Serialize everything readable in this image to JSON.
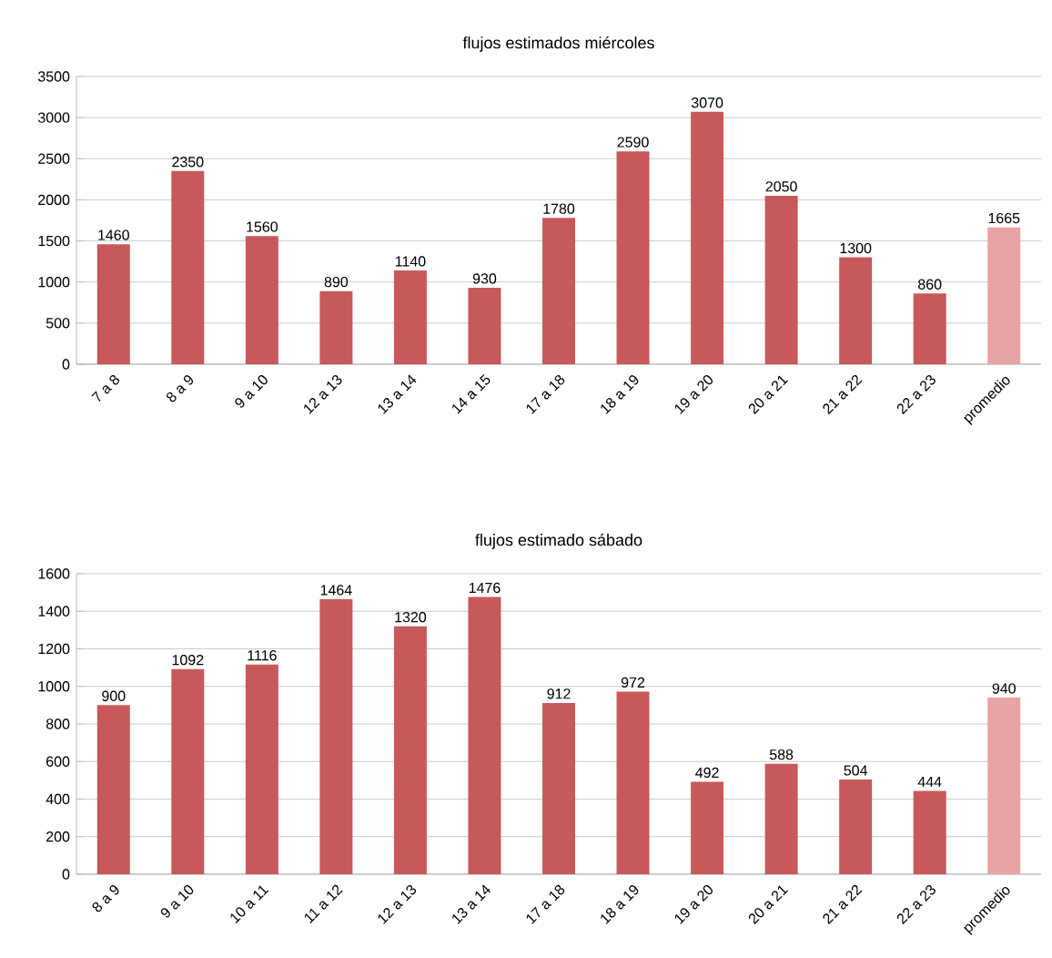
{
  "chart_data": [
    {
      "type": "bar",
      "title": "flujos estimados miércoles",
      "categories": [
        "7 a 8",
        "8 a 9",
        "9 a 10",
        "12 a 13",
        "13 a 14",
        "14 a 15",
        "17 a 18",
        "18 a 19",
        "19 a 20",
        "20 a 21",
        "21 a 22",
        "22 a 23",
        "promedio"
      ],
      "values": [
        1460,
        2350,
        1560,
        890,
        1140,
        930,
        1780,
        2590,
        3070,
        2050,
        1300,
        860,
        1665
      ],
      "colors": [
        "#c8595a",
        "#c8595a",
        "#c8595a",
        "#c8595a",
        "#c8595a",
        "#c8595a",
        "#c8595a",
        "#c8595a",
        "#c8595a",
        "#c8595a",
        "#c8595a",
        "#c8595a",
        "#e8a3a4"
      ],
      "ylim": [
        0,
        3500
      ],
      "yticks": [
        0,
        500,
        1000,
        1500,
        2000,
        2500,
        3000,
        3500
      ],
      "grid": "y",
      "data_labels": true
    },
    {
      "type": "bar",
      "title": "flujos estimado sábado",
      "categories": [
        "8 a 9",
        "9 a 10",
        "10 a 11",
        "11 a 12",
        "12 a 13",
        "13 a 14",
        "17 a 18",
        "18 a 19",
        "19 a 20",
        "20 a 21",
        "21 a 22",
        "22 a 23",
        "promedio"
      ],
      "values": [
        900,
        1092,
        1116,
        1464,
        1320,
        1476,
        912,
        972,
        492,
        588,
        504,
        444,
        940
      ],
      "colors": [
        "#c8595a",
        "#c8595a",
        "#c8595a",
        "#c8595a",
        "#c8595a",
        "#c8595a",
        "#c8595a",
        "#c8595a",
        "#c8595a",
        "#c8595a",
        "#c8595a",
        "#c8595a",
        "#e8a3a4"
      ],
      "ylim": [
        0,
        1600
      ],
      "yticks": [
        0,
        200,
        400,
        600,
        800,
        1000,
        1200,
        1400,
        1600
      ],
      "grid": "y",
      "data_labels": true
    }
  ]
}
